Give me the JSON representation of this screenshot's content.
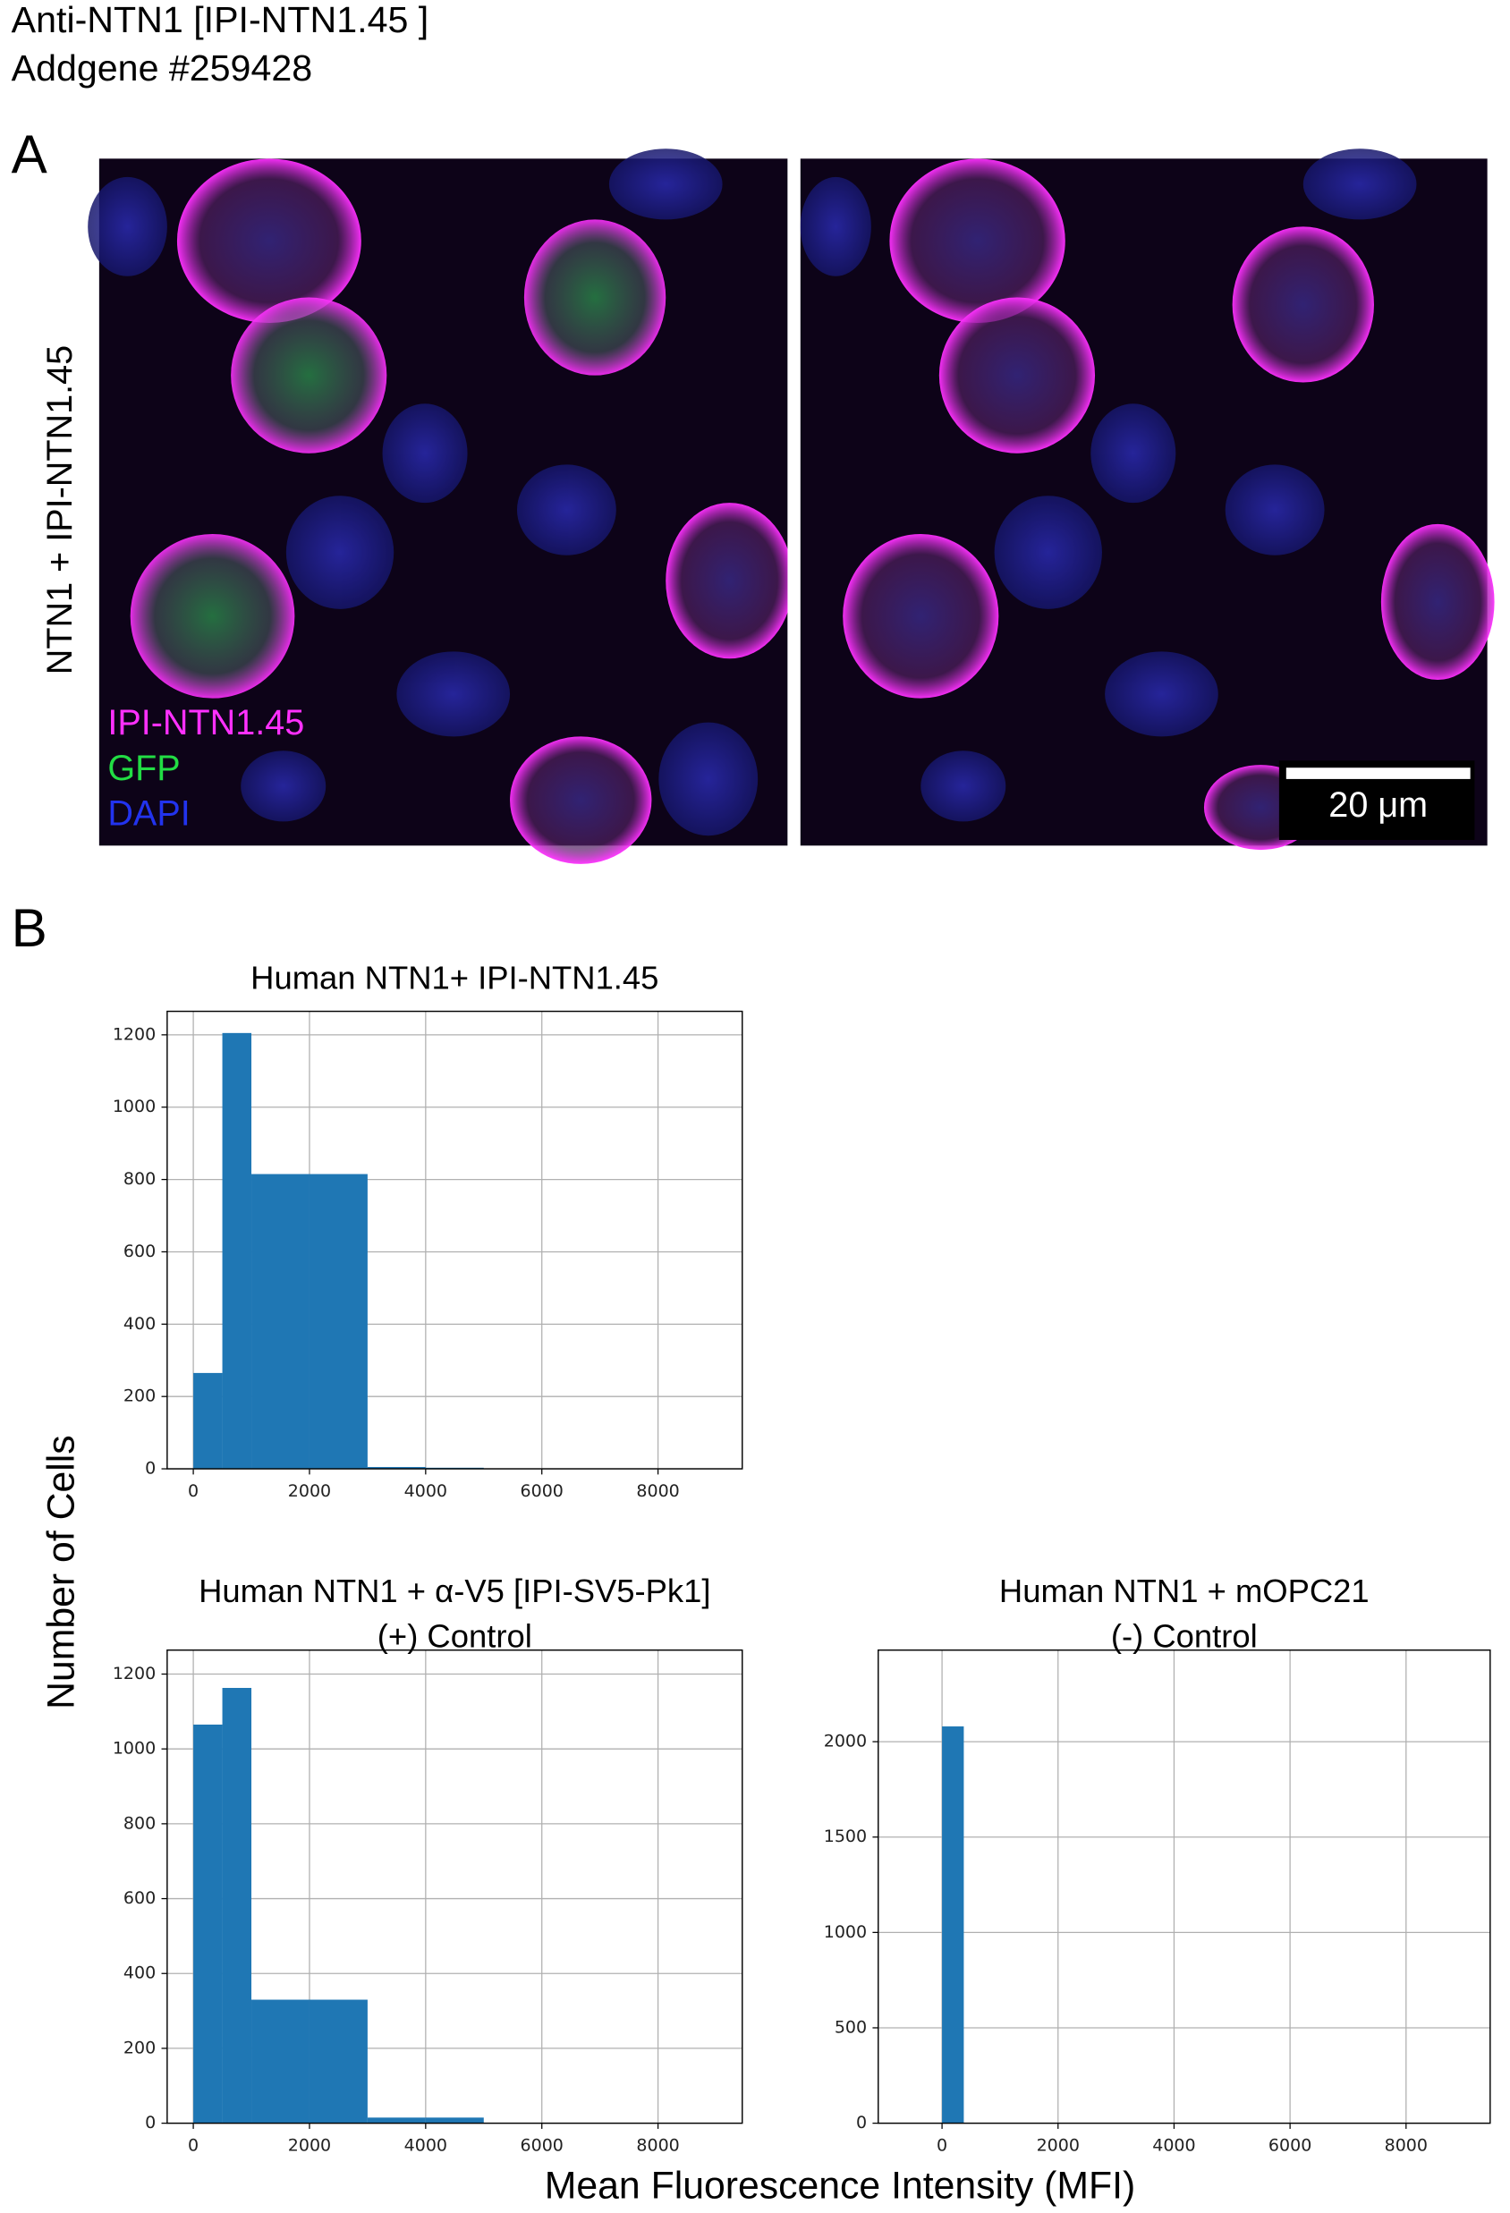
{
  "figure": {
    "title": [
      "Anti-NTN1 [IPI-NTN1.45 ]",
      "Addgene #259428"
    ],
    "panel_a": {
      "label": "A",
      "row_label": "NTN1 + IPI-NTN1.45",
      "legend": [
        "IPI-NTN1.45",
        "GFP",
        "DAPI"
      ],
      "scale_bar": "20 μm"
    },
    "panel_b": {
      "label": "B",
      "ylabel": "Number of Cells",
      "xlabel": "Mean Fluorescence Intensity (MFI)"
    }
  },
  "chart_data": [
    {
      "type": "histogram",
      "title": [
        "Human NTN1+ IPI-NTN1.45"
      ],
      "color": "#1f77b4",
      "bins": [
        0,
        500,
        1000,
        2000,
        3000,
        4000,
        5000,
        6000,
        7000,
        8000,
        9000
      ],
      "values": [
        265,
        1205,
        815,
        815,
        5,
        3,
        0,
        0,
        0,
        0
      ],
      "xlim": [
        -450,
        9450
      ],
      "xticks": [
        0,
        2000,
        4000,
        6000,
        8000
      ],
      "ylim": [
        0,
        1265
      ],
      "yticks": [
        0,
        200,
        400,
        600,
        800,
        1000,
        1200
      ],
      "grid": true
    },
    {
      "type": "histogram",
      "title": [
        "Human NTN1 + α-V5 [IPI-SV5-Pk1]",
        "(+) Control"
      ],
      "color": "#1f77b4",
      "bins": [
        0,
        500,
        1000,
        2000,
        3000,
        4000,
        5000,
        6000,
        7000,
        8000,
        9000
      ],
      "values": [
        1065,
        1163,
        330,
        330,
        15,
        15,
        1,
        1,
        1,
        1
      ],
      "xlim": [
        -450,
        9450
      ],
      "xticks": [
        0,
        2000,
        4000,
        6000,
        8000
      ],
      "ylim": [
        0,
        1264
      ],
      "yticks": [
        0,
        200,
        400,
        600,
        800,
        1000,
        1200
      ],
      "grid": true
    },
    {
      "type": "histogram",
      "title": [
        "Human NTN1 + mOPC21",
        "(-) Control"
      ],
      "color": "#1f77b4",
      "bins": [
        0,
        375,
        750,
        1125,
        1500,
        1875,
        2250,
        2625,
        3000,
        3375,
        3750,
        4125,
        4500,
        4875,
        5250,
        5625,
        6000,
        6375,
        6750,
        7125,
        7500,
        7875,
        8250,
        8625,
        9000
      ],
      "values": [
        2080,
        0,
        0,
        0,
        0,
        0,
        0,
        0,
        0,
        0,
        0,
        0,
        0,
        0,
        0,
        0,
        0,
        0,
        0,
        0,
        0,
        0,
        0,
        0
      ],
      "xlim": [
        -1100,
        9450
      ],
      "xticks": [
        0,
        2000,
        4000,
        6000,
        8000
      ],
      "ylim": [
        0,
        2480
      ],
      "yticks": [
        0,
        500,
        1000,
        1500,
        2000
      ],
      "grid": true
    }
  ]
}
